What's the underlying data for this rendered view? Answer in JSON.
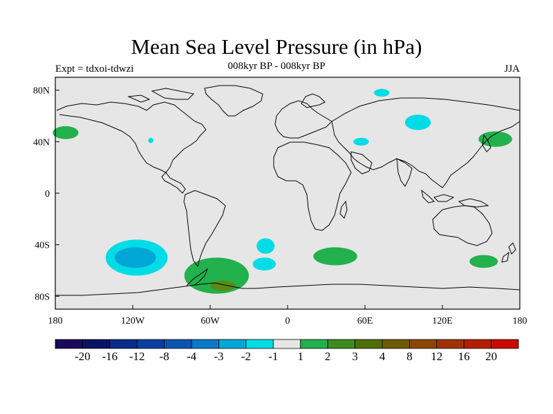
{
  "title": "Mean Sea Level Pressure (in hPa)",
  "subtitle_left": "Expt = tdxoi-tdwzi",
  "subtitle_center": "008kyr BP - 008kyr BP",
  "subtitle_right": "JJA",
  "map": {
    "projection": "cylindrical-equidistant",
    "lon_range": [
      -180,
      180
    ],
    "lat_range": [
      -90,
      90
    ],
    "background_color": "#e6e6e6",
    "x_ticks": [
      {
        "lon": -180,
        "label": "180"
      },
      {
        "lon": -120,
        "label": "120W"
      },
      {
        "lon": -60,
        "label": "60W"
      },
      {
        "lon": 0,
        "label": "0"
      },
      {
        "lon": 60,
        "label": "60E"
      },
      {
        "lon": 120,
        "label": "120E"
      },
      {
        "lon": 180,
        "label": "180"
      }
    ],
    "y_ticks": [
      {
        "lat": 80,
        "label": "80N"
      },
      {
        "lat": 40,
        "label": "40N"
      },
      {
        "lat": 0,
        "label": "0"
      },
      {
        "lat": -40,
        "label": "40S"
      },
      {
        "lat": -80,
        "label": "80S"
      }
    ],
    "anomaly_regions": [
      {
        "lon": 161,
        "lat": 42,
        "rlon": 13,
        "rlat": 6,
        "color": "#22b14c"
      },
      {
        "lon": -117,
        "lat": -50,
        "rlon": 24,
        "rlat": 14,
        "color": "#00dce6"
      },
      {
        "lon": -118,
        "lat": -50,
        "rlon": 16,
        "rlat": 8,
        "color": "#00a6d6"
      },
      {
        "lon": -55,
        "lat": -64,
        "rlon": 25,
        "rlat": 14,
        "color": "#22b14c"
      },
      {
        "lon": -50,
        "lat": -72,
        "rlon": 10,
        "rlat": 4,
        "color": "#5a8a16"
      },
      {
        "lon": 37,
        "lat": -49,
        "rlon": 17,
        "rlat": 7,
        "color": "#22b14c"
      },
      {
        "lon": 152,
        "lat": -53,
        "rlon": 11,
        "rlat": 5,
        "color": "#22b14c"
      },
      {
        "lon": -17,
        "lat": -41,
        "rlon": 7,
        "rlat": 6,
        "color": "#00dce6"
      },
      {
        "lon": -18,
        "lat": -55,
        "rlon": 9,
        "rlat": 5,
        "color": "#00dce6"
      },
      {
        "lon": -172,
        "lat": 47,
        "rlon": 10,
        "rlat": 5,
        "color": "#22b14c"
      },
      {
        "lon": 101,
        "lat": 55,
        "rlon": 10,
        "rlat": 6,
        "color": "#00dce6"
      },
      {
        "lon": 57,
        "lat": 40,
        "rlon": 6,
        "rlat": 3,
        "color": "#00dce6"
      },
      {
        "lon": 73,
        "lat": 78,
        "rlon": 6,
        "rlat": 3,
        "color": "#00dce6"
      },
      {
        "lon": -106,
        "lat": 41,
        "rlon": 2,
        "rlat": 2,
        "color": "#00dce6"
      }
    ]
  },
  "colorbar": {
    "colors": [
      "#1a0a5a",
      "#0a1464",
      "#0a2c8c",
      "#0a3fa0",
      "#0a55b0",
      "#0a78c8",
      "#00a6d6",
      "#00dce6",
      "#e6e6e6",
      "#22b14c",
      "#3c8c1e",
      "#506e0a",
      "#6e5a00",
      "#8c4600",
      "#a03200",
      "#b41e00",
      "#c80a00"
    ],
    "labels": [
      "-20",
      "-16",
      "-12",
      "-8",
      "-4",
      "-3",
      "-2",
      "-1",
      "1",
      "2",
      "3",
      "4",
      "8",
      "12",
      "16",
      "20"
    ]
  }
}
